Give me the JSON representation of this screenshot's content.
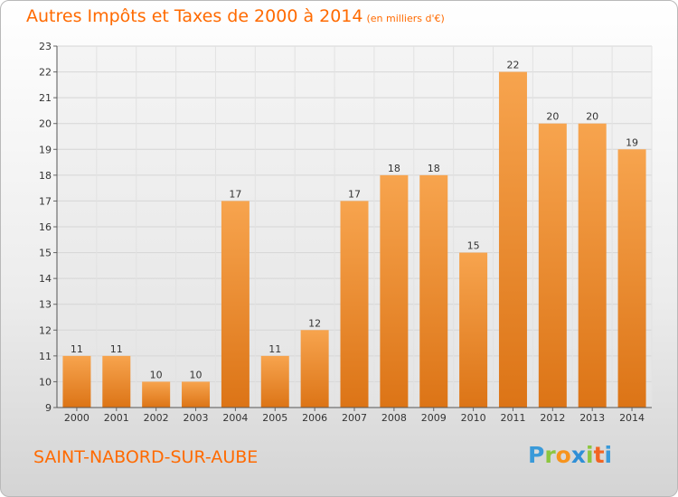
{
  "chart_data": {
    "type": "bar",
    "title": "Autres Impôts et Taxes de 2000 à 2014",
    "unit_note": "(en milliers d'€)",
    "categories": [
      "2000",
      "2001",
      "2002",
      "2003",
      "2004",
      "2005",
      "2006",
      "2007",
      "2008",
      "2009",
      "2010",
      "2011",
      "2012",
      "2013",
      "2014"
    ],
    "values": [
      11,
      11,
      10,
      10,
      17,
      11,
      12,
      17,
      18,
      18,
      15,
      22,
      20,
      20,
      19
    ],
    "ylim": [
      9,
      23
    ],
    "yticks": [
      9,
      10,
      11,
      12,
      13,
      14,
      15,
      16,
      17,
      18,
      19,
      20,
      21,
      22,
      23
    ],
    "grid": true,
    "bar_color": "#f08a24",
    "xlabel": "",
    "ylabel": ""
  },
  "footer": {
    "commune": "SAINT-NABORD-SUR-AUBE",
    "logo_letters": [
      "P",
      "r",
      "o",
      "x",
      "i",
      "t",
      "i"
    ]
  },
  "colors": {
    "accent": "#ff6a00",
    "grid": "#d9d9d9",
    "bar_light": "#f6a24b",
    "bar_dark": "#d96f14"
  }
}
